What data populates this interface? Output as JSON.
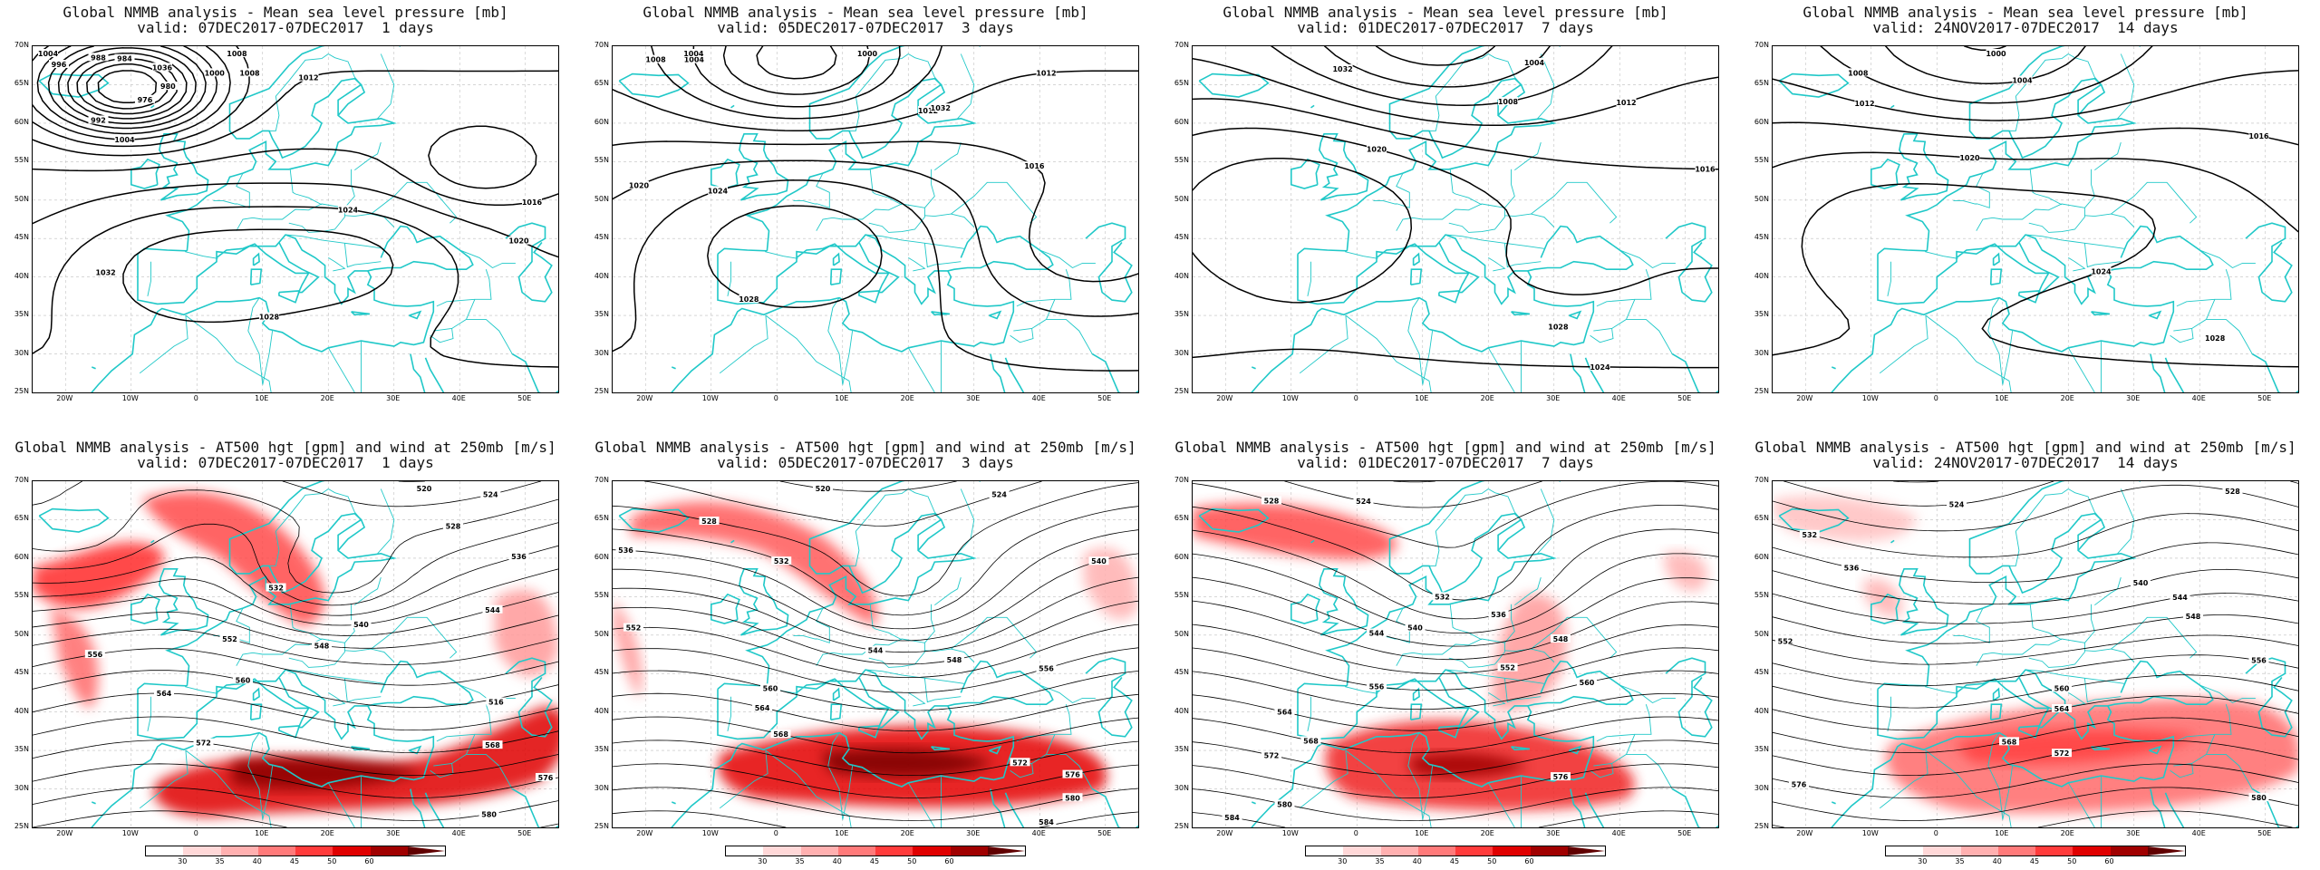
{
  "lat_labels": [
    "70N",
    "65N",
    "60N",
    "55N",
    "50N",
    "45N",
    "40N",
    "35N",
    "30N",
    "25N"
  ],
  "lon_labels": [
    "20W",
    "10W",
    "0",
    "10E",
    "20E",
    "30E",
    "40E",
    "50E"
  ],
  "colorbar": {
    "ticks": [
      "30",
      "35",
      "40",
      "45",
      "50",
      "60"
    ],
    "colors": [
      "#ffffff",
      "#ffd8d8",
      "#ffb0b0",
      "#ff7a7a",
      "#ff3b3b",
      "#e00000",
      "#a00000",
      "#600000"
    ]
  },
  "colors": {
    "coast": "#20c8c8",
    "contour": "#000000",
    "jet": "#e60000"
  },
  "panels": [
    {
      "title": "Global NMMB analysis - Mean sea level pressure [mb]",
      "subtitle": "valid: 07DEC2017-07DEC2017  1 days",
      "kind": "mslp",
      "labels": [
        "992",
        "996",
        "980",
        "976",
        "984",
        "988",
        "1000",
        "1004",
        "1008",
        "1012",
        "1016",
        "1020",
        "1024",
        "1028",
        "1032",
        "1036",
        "1016",
        "1008",
        "1004"
      ]
    },
    {
      "title": "Global NMMB analysis - Mean sea level pressure [mb]",
      "subtitle": "valid: 05DEC2017-07DEC2017  3 days",
      "kind": "mslp",
      "labels": [
        "1000",
        "1004",
        "1008",
        "1012",
        "1016",
        "1020",
        "1024",
        "1028",
        "1032",
        "1004",
        "1012"
      ]
    },
    {
      "title": "Global NMMB analysis - Mean sea level pressure [mb]",
      "subtitle": "valid: 01DEC2017-07DEC2017  7 days",
      "kind": "mslp",
      "labels": [
        "1004",
        "1008",
        "1012",
        "1016",
        "1020",
        "1024",
        "1028",
        "1032"
      ]
    },
    {
      "title": "Global NMMB analysis - Mean sea level pressure [mb]",
      "subtitle": "valid: 24NOV2017-07DEC2017  14 days",
      "kind": "mslp",
      "labels": [
        "1000",
        "1004",
        "1008",
        "1012",
        "1016",
        "1020",
        "1024",
        "1028"
      ]
    },
    {
      "title": "Global NMMB analysis - AT500 hgt [gpm] and wind at 250mb [m/s]",
      "subtitle": "valid: 07DEC2017-07DEC2017  1 days",
      "kind": "z500",
      "labels": [
        "516",
        "520",
        "524",
        "528",
        "532",
        "536",
        "540",
        "544",
        "548",
        "552",
        "556",
        "560",
        "564",
        "568",
        "572",
        "576",
        "580"
      ]
    },
    {
      "title": "Global NMMB analysis - AT500 hgt [gpm] and wind at 250mb [m/s]",
      "subtitle": "valid: 05DEC2017-07DEC2017  3 days",
      "kind": "z500",
      "labels": [
        "520",
        "524",
        "528",
        "532",
        "536",
        "540",
        "544",
        "548",
        "552",
        "556",
        "560",
        "564",
        "568",
        "572",
        "576",
        "580",
        "584"
      ]
    },
    {
      "title": "Global NMMB analysis - AT500 hgt [gpm] and wind at 250mb [m/s]",
      "subtitle": "valid: 01DEC2017-07DEC2017  7 days",
      "kind": "z500",
      "labels": [
        "524",
        "528",
        "532",
        "536",
        "540",
        "544",
        "548",
        "552",
        "556",
        "560",
        "564",
        "568",
        "572",
        "576",
        "580",
        "584"
      ]
    },
    {
      "title": "Global NMMB analysis - AT500 hgt [gpm] and wind at 250mb [m/s]",
      "subtitle": "valid: 24NOV2017-07DEC2017  14 days",
      "kind": "z500",
      "labels": [
        "524",
        "528",
        "532",
        "536",
        "540",
        "544",
        "548",
        "552",
        "556",
        "560",
        "564",
        "568",
        "572",
        "576",
        "580"
      ]
    }
  ]
}
